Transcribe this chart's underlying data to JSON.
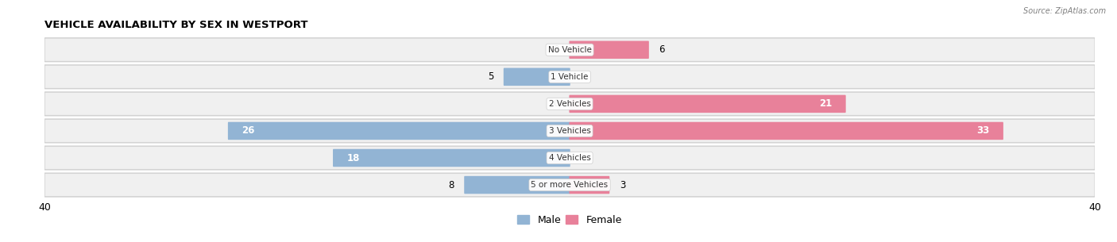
{
  "title": "VEHICLE AVAILABILITY BY SEX IN WESTPORT",
  "source": "Source: ZipAtlas.com",
  "categories": [
    "No Vehicle",
    "1 Vehicle",
    "2 Vehicles",
    "3 Vehicles",
    "4 Vehicles",
    "5 or more Vehicles"
  ],
  "male_values": [
    0,
    5,
    0,
    26,
    18,
    8
  ],
  "female_values": [
    6,
    0,
    21,
    33,
    0,
    3
  ],
  "male_color": "#92b4d4",
  "female_color": "#e8819a",
  "row_bg_color": "#e8e8e8",
  "row_inner_color": "#f5f5f5",
  "xlim": 40,
  "label_fontsize": 8.5,
  "title_fontsize": 9.5,
  "category_fontsize": 7.5,
  "legend_fontsize": 9,
  "axis_label_fontsize": 9,
  "bar_height": 0.58,
  "figsize": [
    14.06,
    3.05
  ],
  "dpi": 100
}
